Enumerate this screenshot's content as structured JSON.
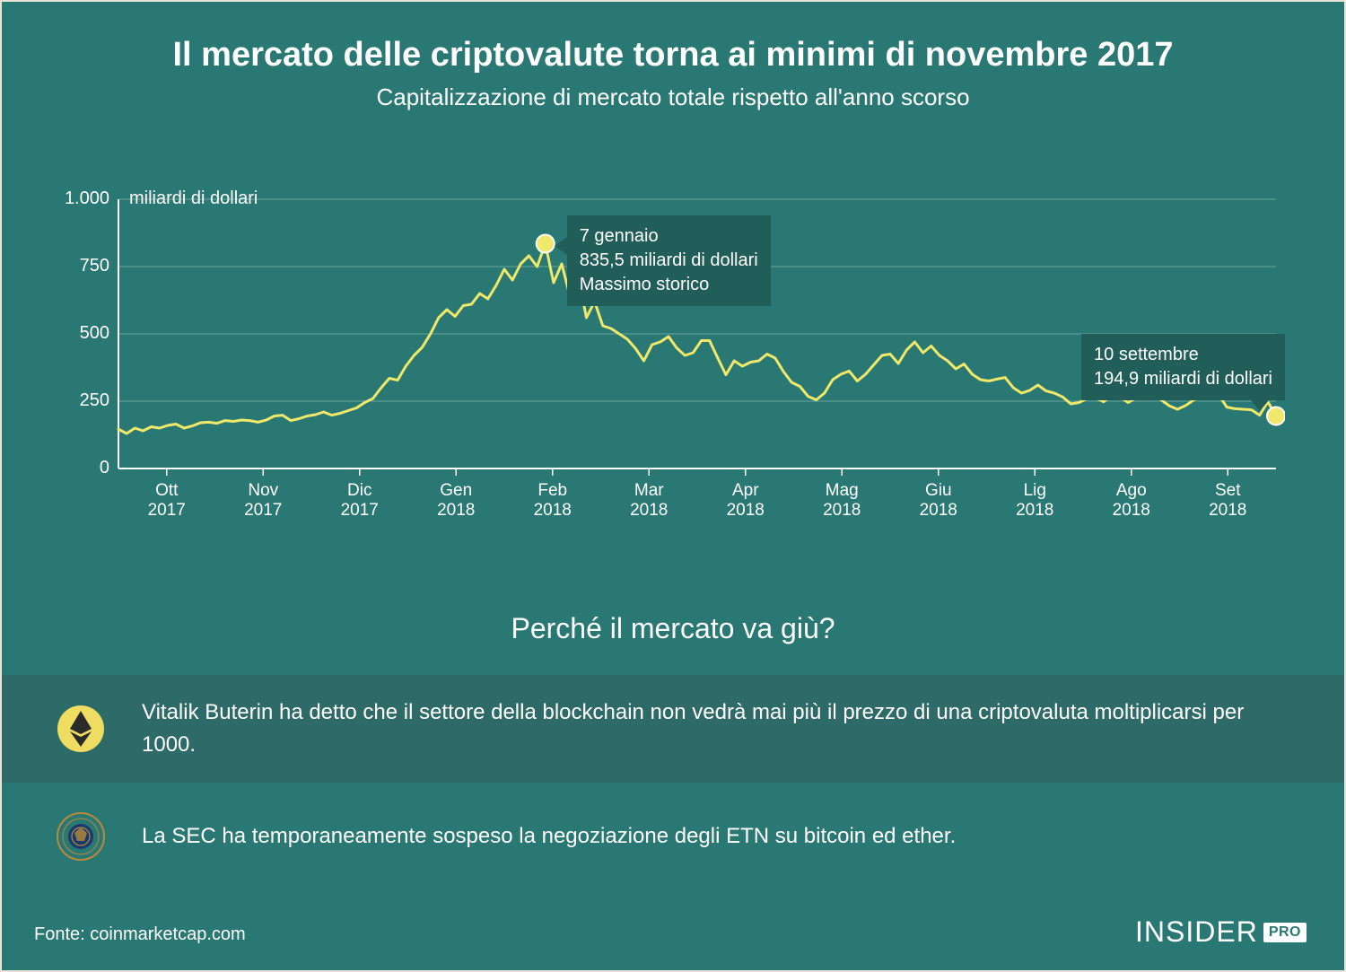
{
  "header": {
    "title": "Il mercato delle criptovalute torna ai minimi di novembre 2017",
    "subtitle": "Capitalizzazione di mercato totale rispetto all'anno scorso"
  },
  "chart": {
    "type": "line",
    "background_color": "#2a7873",
    "line_color": "#f0e86a",
    "line_width": 3,
    "gridline_color": "#6aa5a0",
    "axis_color": "#ffffff",
    "y_unit_label": "miliardi di dollari",
    "y_ticks": [
      0,
      250,
      500,
      750,
      1000
    ],
    "y_tick_labels": [
      "0",
      "250",
      "500",
      "750",
      "1.000"
    ],
    "ylim": [
      0,
      1000
    ],
    "x_labels": [
      "Ott\n2017",
      "Nov\n2017",
      "Dic\n2017",
      "Gen\n2018",
      "Feb\n2018",
      "Mar\n2018",
      "Apr\n2018",
      "Mag\n2018",
      "Giu\n2018",
      "Lig\n2018",
      "Ago\n2018",
      "Set\n2018"
    ],
    "values": [
      146,
      130,
      150,
      140,
      155,
      150,
      160,
      165,
      150,
      158,
      170,
      172,
      168,
      178,
      175,
      180,
      178,
      172,
      180,
      195,
      198,
      178,
      185,
      195,
      200,
      210,
      198,
      205,
      215,
      225,
      245,
      260,
      300,
      335,
      328,
      380,
      420,
      450,
      500,
      560,
      590,
      565,
      605,
      610,
      650,
      630,
      680,
      740,
      700,
      760,
      790,
      750,
      835,
      690,
      760,
      640,
      720,
      560,
      620,
      530,
      520,
      500,
      480,
      445,
      400,
      460,
      470,
      490,
      448,
      420,
      430,
      475,
      475,
      410,
      348,
      400,
      380,
      395,
      400,
      425,
      410,
      360,
      320,
      305,
      268,
      255,
      280,
      330,
      350,
      362,
      325,
      350,
      385,
      420,
      425,
      390,
      440,
      470,
      430,
      455,
      420,
      400,
      370,
      388,
      350,
      330,
      325,
      332,
      338,
      300,
      280,
      290,
      310,
      288,
      280,
      266,
      240,
      245,
      260,
      262,
      248,
      272,
      265,
      245,
      263,
      300,
      290,
      255,
      233,
      220,
      234,
      255,
      270,
      290,
      275,
      228,
      222,
      220,
      218,
      198,
      248,
      195
    ],
    "annotations": {
      "peak": {
        "line1": "7 gennaio",
        "line2": "835,5 miliardi di dollari",
        "line3": "Massimo storico",
        "marker_color": "#f0e86a",
        "marker_radius": 10,
        "box_bg": "#215e5a"
      },
      "end": {
        "line1": "10 settembre",
        "line2": "194,9 miliardi di dollari",
        "marker_color": "#f0e86a",
        "marker_radius": 10,
        "box_bg": "#215e5a"
      }
    }
  },
  "section_title": "Perché il mercato va giù?",
  "reasons": [
    {
      "icon": "ethereum",
      "icon_bg": "#eedd60",
      "icon_fg": "#2a2a2a",
      "text": "Vitalik Buterin ha detto che il settore della blockchain non vedrà mai più il prezzo di una criptovaluta moltiplicarsi per 1000."
    },
    {
      "icon": "sec-seal",
      "icon_bg": "#b88a3a",
      "icon_fg": "#1a3a6e",
      "text": "La SEC ha temporaneamente sospeso la negoziazione degli ETN su bitcoin ed ether."
    }
  ],
  "source": "Fonte: coinmarketcap.com",
  "brand": {
    "name": "INSIDER",
    "tag": "PRO"
  }
}
